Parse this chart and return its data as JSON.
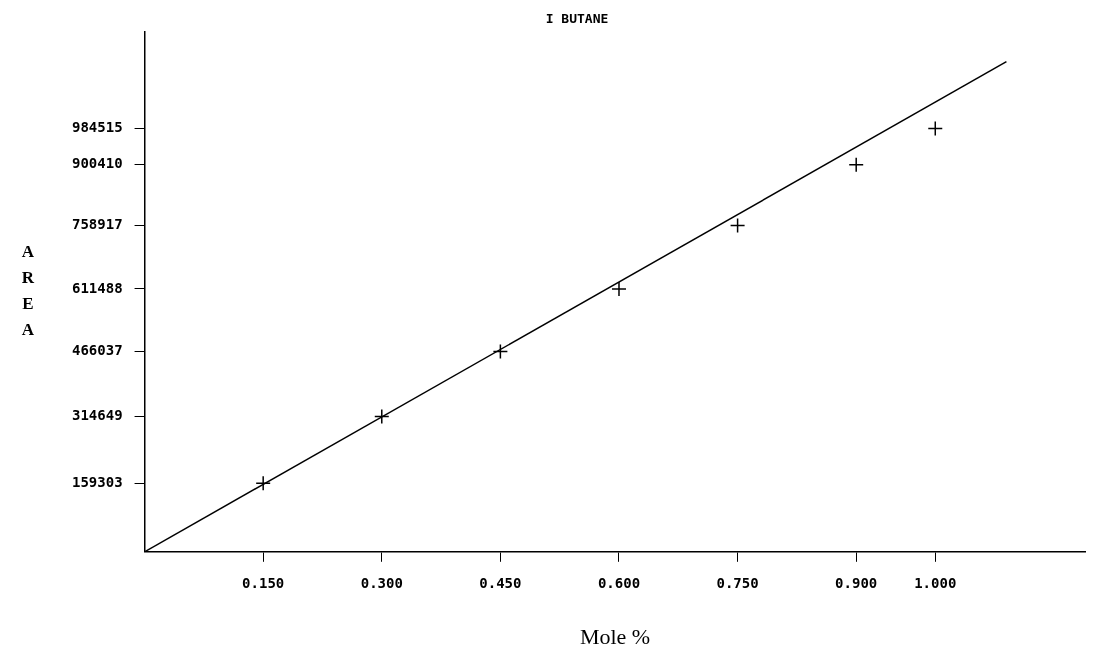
{
  "chart_data": {
    "type": "scatter",
    "title": "I BUTANE",
    "xlabel": "Mole %",
    "ylabel": "AREA",
    "x": [
      0.15,
      0.3,
      0.45,
      0.6,
      0.75,
      0.9,
      1.0
    ],
    "series": [
      {
        "color": "#000000",
        "values": [
          159303,
          314649,
          466037,
          611488,
          758917,
          900410,
          984515
        ]
      },
      {
        "type": "line",
        "color": "#000000",
        "marker": "none",
        "x": [
          0,
          1.09
        ],
        "values": [
          0,
          1140000
        ]
      }
    ],
    "xlim": [
      0,
      1.19
    ],
    "ylim": [
      0,
      1210000
    ],
    "xticks": [
      {
        "value": 0.15,
        "label": "0.150"
      },
      {
        "value": 0.3,
        "label": "0.300"
      },
      {
        "value": 0.45,
        "label": "0.450"
      },
      {
        "value": 0.6,
        "label": "0.600"
      },
      {
        "value": 0.75,
        "label": "0.750"
      },
      {
        "value": 0.9,
        "label": "0.900"
      },
      {
        "value": 1.0,
        "label": "1.000"
      }
    ],
    "yticks": [
      159303,
      314649,
      466037,
      611488,
      758917,
      900410,
      984515
    ],
    "grid": false,
    "legend": false,
    "marker": "cross",
    "line_style": "solid"
  }
}
